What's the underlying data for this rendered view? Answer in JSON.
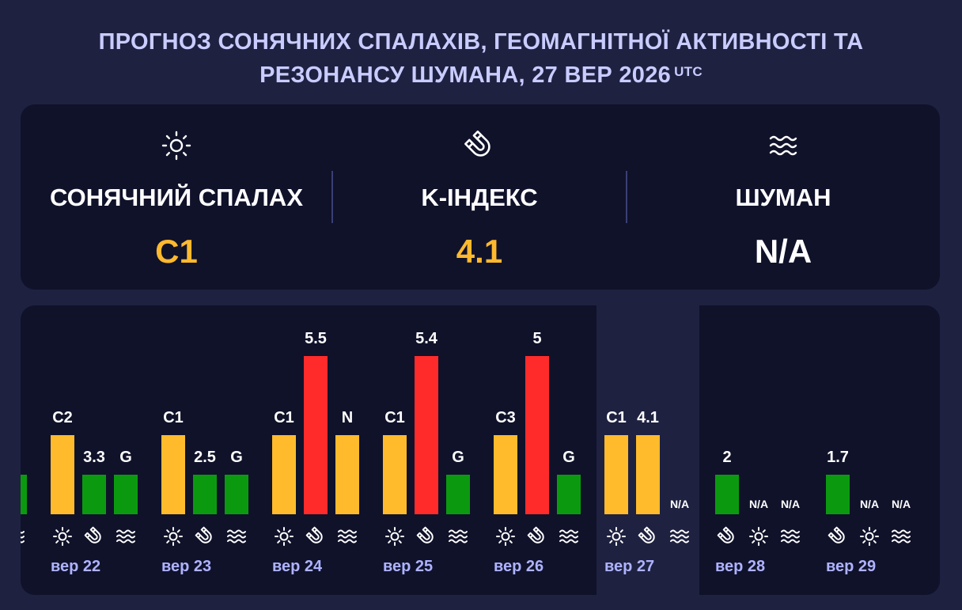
{
  "header": {
    "title_line1": "ПРОГНОЗ СОНЯЧНИХ СПАЛАХІВ, ГЕОМАГНІТНОЇ АКТИВНОСТІ ТА",
    "title_line2": "РЕЗОНАНСУ ШУМАНА, 27 ВЕР 2026",
    "title_sup": "UTC"
  },
  "summary": {
    "flare": {
      "label": "СОНЯЧНИЙ СПАЛАХ",
      "value": "C1",
      "icon": "sun-icon"
    },
    "kindex": {
      "label": "K-ІНДЕКС",
      "value": "4.1",
      "icon": "magnet-icon"
    },
    "schumann": {
      "label": "ШУМАН",
      "value": "N/A",
      "icon": "waves-icon"
    }
  },
  "colors": {
    "background": "#1e2140",
    "panel": "#10122a",
    "title": "#c9ccff",
    "day_label": "#aeb3ff",
    "accent_value": "#ffb92e",
    "bar_yellow": "#ffbb2c",
    "bar_red": "#ff2b2b",
    "bar_green": "#0b9a0f",
    "icon": "#ffffff"
  },
  "chart_data": {
    "type": "bar",
    "categories": [
      "вер 22",
      "вер 23",
      "вер 24",
      "вер 25",
      "вер 26",
      "вер 27",
      "вер 28",
      "вер 29"
    ],
    "partial_left_bar": {
      "label": "",
      "level": "green"
    },
    "days": [
      {
        "day": "вер 22",
        "bars": [
          {
            "kind": "flare",
            "label": "C2",
            "level": "yellow"
          },
          {
            "kind": "kindex",
            "label": "3.3",
            "level": "green"
          },
          {
            "kind": "schumann",
            "label": "G",
            "level": "green"
          }
        ]
      },
      {
        "day": "вер 23",
        "bars": [
          {
            "kind": "flare",
            "label": "C1",
            "level": "yellow"
          },
          {
            "kind": "kindex",
            "label": "2.5",
            "level": "green"
          },
          {
            "kind": "schumann",
            "label": "G",
            "level": "green"
          }
        ]
      },
      {
        "day": "вер 24",
        "bars": [
          {
            "kind": "flare",
            "label": "C1",
            "level": "yellow"
          },
          {
            "kind": "kindex",
            "label": "5.5",
            "level": "red"
          },
          {
            "kind": "schumann",
            "label": "N",
            "level": "yellow"
          }
        ]
      },
      {
        "day": "вер 25",
        "bars": [
          {
            "kind": "flare",
            "label": "C1",
            "level": "yellow"
          },
          {
            "kind": "kindex",
            "label": "5.4",
            "level": "red"
          },
          {
            "kind": "schumann",
            "label": "G",
            "level": "green"
          }
        ]
      },
      {
        "day": "вер 26",
        "bars": [
          {
            "kind": "flare",
            "label": "C3",
            "level": "yellow"
          },
          {
            "kind": "kindex",
            "label": "5",
            "level": "red"
          },
          {
            "kind": "schumann",
            "label": "G",
            "level": "green"
          }
        ]
      },
      {
        "day": "вер 27",
        "bars": [
          {
            "kind": "flare",
            "label": "C1",
            "level": "yellow"
          },
          {
            "kind": "kindex",
            "label": "4.1",
            "level": "yellow"
          },
          {
            "kind": "schumann",
            "label": "N/A",
            "level": "none"
          }
        ]
      },
      {
        "day": "вер 28",
        "bars": [
          {
            "kind": "kindex",
            "label": "2",
            "level": "green"
          },
          {
            "kind": "flare",
            "label": "N/A",
            "level": "none"
          },
          {
            "kind": "schumann",
            "label": "N/A",
            "level": "none"
          }
        ]
      },
      {
        "day": "вер 29",
        "bars": [
          {
            "kind": "kindex",
            "label": "1.7",
            "level": "green"
          },
          {
            "kind": "flare",
            "label": "N/A",
            "level": "none"
          },
          {
            "kind": "schumann",
            "label": "N/A",
            "level": "none"
          }
        ]
      }
    ],
    "current_day": "вер 27",
    "grid": false
  }
}
